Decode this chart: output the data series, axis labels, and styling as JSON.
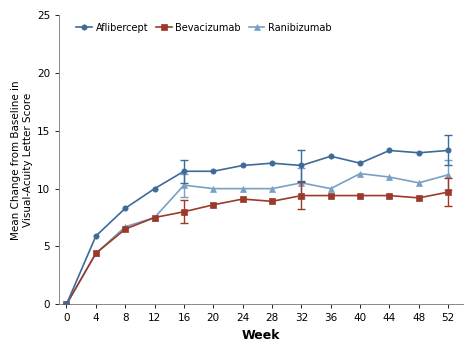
{
  "weeks": [
    0,
    4,
    8,
    12,
    16,
    20,
    24,
    28,
    32,
    36,
    40,
    44,
    48,
    52
  ],
  "aflibercept": [
    0,
    5.9,
    8.3,
    10.0,
    11.5,
    11.5,
    12.0,
    12.2,
    12.0,
    12.8,
    12.2,
    13.3,
    13.1,
    13.3
  ],
  "bevacizumab": [
    0,
    4.4,
    6.5,
    7.5,
    8.0,
    8.6,
    9.1,
    8.9,
    9.4,
    9.4,
    9.4,
    9.4,
    9.2,
    9.7
  ],
  "ranibizumab": [
    0,
    4.4,
    6.7,
    7.5,
    10.3,
    10.0,
    10.0,
    10.0,
    10.5,
    10.0,
    11.3,
    11.0,
    10.5,
    11.2
  ],
  "aflibercept_err_up": [
    0,
    0,
    0,
    0,
    1.0,
    0,
    0,
    0,
    1.3,
    0,
    0,
    0,
    0,
    1.3
  ],
  "aflibercept_err_dn": [
    0,
    0,
    0,
    0,
    1.0,
    0,
    0,
    0,
    1.3,
    0,
    0,
    0,
    0,
    1.3
  ],
  "bevacizumab_err_up": [
    0,
    0,
    0,
    0,
    1.0,
    0,
    0,
    0,
    1.2,
    0,
    0,
    0,
    0,
    1.2
  ],
  "bevacizumab_err_dn": [
    0,
    0,
    0,
    0,
    1.0,
    0,
    0,
    0,
    1.2,
    0,
    0,
    0,
    0,
    1.2
  ],
  "ranibizumab_err_up": [
    0,
    0,
    0,
    0,
    1.0,
    0,
    0,
    0,
    1.3,
    0,
    0,
    0,
    0,
    1.3
  ],
  "ranibizumab_err_dn": [
    0,
    0,
    0,
    0,
    1.0,
    0,
    0,
    0,
    1.3,
    0,
    0,
    0,
    0,
    1.3
  ],
  "color_aflibercept": "#3d6b99",
  "color_bevacizumab": "#9b3a2a",
  "color_ranibizumab": "#7a9fc4",
  "ylabel": "Mean Change from Baseline in\nVisual-Acuity Letter Score",
  "xlabel": "Week",
  "ylim": [
    0,
    25
  ],
  "yticks": [
    0,
    5,
    10,
    15,
    20,
    25
  ],
  "xticks": [
    0,
    4,
    8,
    12,
    16,
    20,
    24,
    28,
    32,
    36,
    40,
    44,
    48,
    52
  ],
  "legend_labels": [
    "Aflibercept",
    "Bevacizumab",
    "Ranibizumab"
  ],
  "background_color": "#ffffff"
}
